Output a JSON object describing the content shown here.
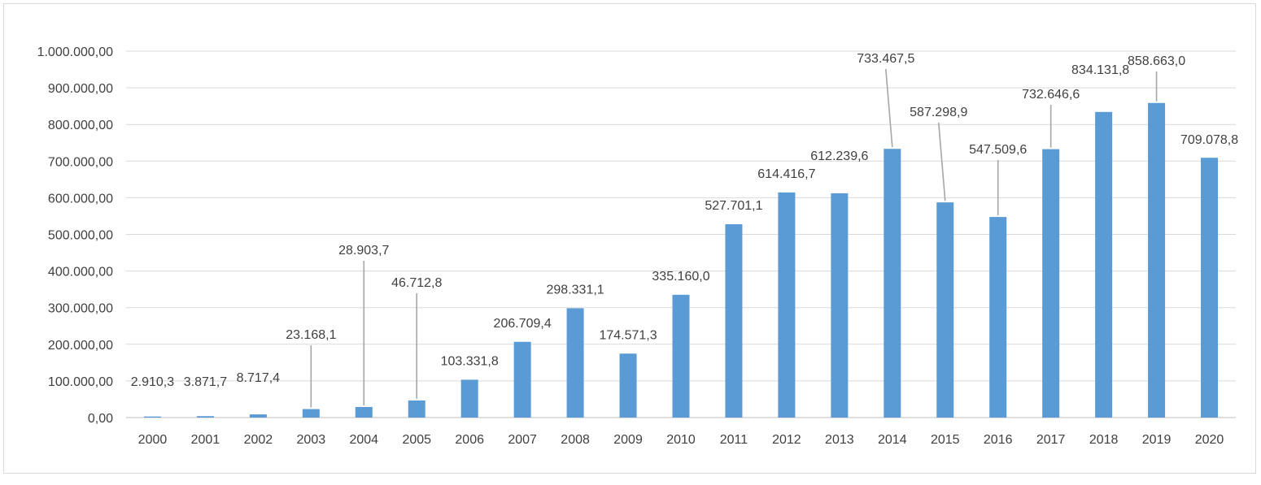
{
  "chart_data": {
    "type": "bar",
    "title": "",
    "xlabel": "",
    "ylabel": "",
    "ylim": [
      0,
      1000000
    ],
    "y_tick_values": [
      0,
      100000,
      200000,
      300000,
      400000,
      500000,
      600000,
      700000,
      800000,
      900000,
      1000000
    ],
    "y_tick_labels": [
      "0,00",
      "100.000,00",
      "200.000,00",
      "300.000,00",
      "400.000,00",
      "500.000,00",
      "600.000,00",
      "700.000,00",
      "800.000,00",
      "900.000,00",
      "1.000.000,00"
    ],
    "categories": [
      "2000",
      "2001",
      "2002",
      "2003",
      "2004",
      "2005",
      "2006",
      "2007",
      "2008",
      "2009",
      "2010",
      "2011",
      "2012",
      "2013",
      "2014",
      "2015",
      "2016",
      "2017",
      "2018",
      "2019",
      "2020"
    ],
    "values": [
      2910.3,
      3871.7,
      8717.4,
      23168.1,
      28903.7,
      46712.8,
      103331.8,
      206709.4,
      298331.1,
      174571.3,
      335160.0,
      527701.1,
      614416.7,
      612239.6,
      733467.5,
      587298.9,
      547509.6,
      732646.6,
      834131.8,
      858663.0,
      709078.8
    ],
    "data_labels": [
      "2.910,3",
      "3.871,7",
      "8.717,4",
      "23.168,1",
      "28.903,7",
      "46.712,8",
      "103.331,8",
      "206.709,4",
      "298.331,1",
      "174.571,3",
      "335.160,0",
      "527.701,1",
      "614.416,7",
      "612.239,6",
      "733.467,5",
      "587.298,9",
      "547.509,6",
      "732.646,6",
      "834.131,8",
      "858.663,0",
      "709.078,8"
    ],
    "grid": true,
    "legend": "none",
    "bar_color": "#5b9bd5"
  }
}
